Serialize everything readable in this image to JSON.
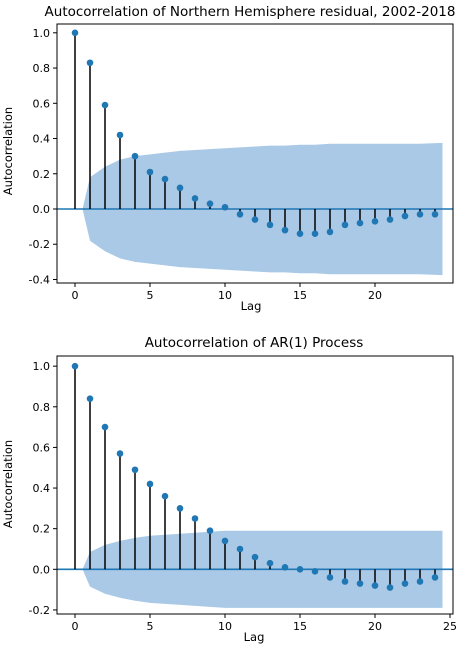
{
  "chart_data": [
    {
      "type": "stem",
      "title": "Autocorrelation of Northern Hemisphere residual, 2002-2018",
      "xlabel": "Lag",
      "ylabel": "Autocorrelation",
      "xlim": [
        -1.2,
        25.2
      ],
      "ylim": [
        -0.42,
        1.05
      ],
      "xticks": [
        0,
        5,
        10,
        15,
        20
      ],
      "xtick_labels": [
        "0",
        "5",
        "10",
        "15",
        "20"
      ],
      "yticks": [
        -0.4,
        -0.2,
        0.0,
        0.2,
        0.4,
        0.6,
        0.8,
        1.0
      ],
      "ytick_labels": [
        "-0.4",
        "-0.2",
        "0.0",
        "0.2",
        "0.4",
        "0.6",
        "0.8",
        "1.0"
      ],
      "grid": false,
      "lags": [
        0,
        1,
        2,
        3,
        4,
        5,
        6,
        7,
        8,
        9,
        10,
        11,
        12,
        13,
        14,
        15,
        16,
        17,
        18,
        19,
        20,
        21,
        22,
        23,
        24
      ],
      "values": [
        1.0,
        0.83,
        0.59,
        0.42,
        0.3,
        0.21,
        0.17,
        0.12,
        0.06,
        0.03,
        0.01,
        -0.03,
        -0.06,
        -0.09,
        -0.12,
        -0.14,
        -0.14,
        -0.13,
        -0.09,
        -0.08,
        -0.07,
        -0.06,
        -0.04,
        -0.03,
        -0.03
      ],
      "confidence_band": [
        0,
        0.18,
        0.24,
        0.28,
        0.3,
        0.31,
        0.32,
        0.33,
        0.335,
        0.34,
        0.345,
        0.35,
        0.355,
        0.36,
        0.36,
        0.365,
        0.365,
        0.37,
        0.37,
        0.37,
        0.37,
        0.37,
        0.37,
        0.37,
        0.375
      ],
      "colors": {
        "marker": "#1f77b4",
        "stem": "#000000",
        "baseline": "#1f77b4",
        "band": "#a9c9e6"
      }
    },
    {
      "type": "stem",
      "title": "Autocorrelation of AR(1) Process",
      "xlabel": "Lag",
      "ylabel": "Autocorrelation",
      "xlim": [
        -1.2,
        25.2
      ],
      "ylim": [
        -0.22,
        1.05
      ],
      "xticks": [
        0,
        5,
        10,
        15,
        20,
        25
      ],
      "xtick_labels": [
        "0",
        "5",
        "10",
        "15",
        "20",
        "25"
      ],
      "yticks": [
        -0.2,
        0.0,
        0.2,
        0.4,
        0.6,
        0.8,
        1.0
      ],
      "ytick_labels": [
        "-0.2",
        "0.0",
        "0.2",
        "0.4",
        "0.6",
        "0.8",
        "1.0"
      ],
      "grid": false,
      "lags": [
        0,
        1,
        2,
        3,
        4,
        5,
        6,
        7,
        8,
        9,
        10,
        11,
        12,
        13,
        14,
        15,
        16,
        17,
        18,
        19,
        20,
        21,
        22,
        23,
        24
      ],
      "values": [
        1.0,
        0.84,
        0.7,
        0.57,
        0.49,
        0.42,
        0.36,
        0.3,
        0.25,
        0.19,
        0.14,
        0.1,
        0.06,
        0.03,
        0.01,
        0.0,
        -0.01,
        -0.04,
        -0.06,
        -0.07,
        -0.08,
        -0.09,
        -0.07,
        -0.06,
        -0.04
      ],
      "confidence_band": [
        0,
        0.085,
        0.12,
        0.14,
        0.155,
        0.165,
        0.17,
        0.175,
        0.18,
        0.185,
        0.19,
        0.19,
        0.19,
        0.19,
        0.19,
        0.19,
        0.19,
        0.19,
        0.19,
        0.19,
        0.19,
        0.19,
        0.19,
        0.19,
        0.19
      ],
      "colors": {
        "marker": "#1f77b4",
        "stem": "#000000",
        "baseline": "#1f77b4",
        "band": "#a9c9e6"
      }
    }
  ]
}
